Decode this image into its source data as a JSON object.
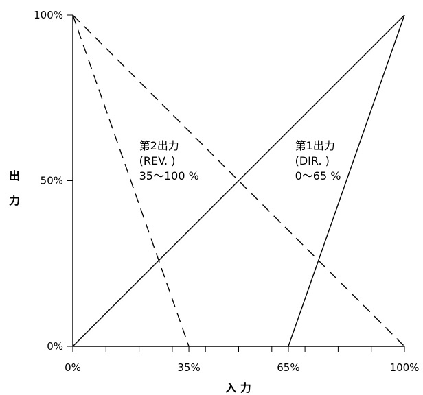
{
  "chart_data": {
    "type": "line",
    "xlabel": "入 力",
    "ylabel": "出力",
    "xlim": [
      0,
      100
    ],
    "ylim": [
      0,
      100
    ],
    "x_tick_labels": [
      {
        "value": 0,
        "label": "0%"
      },
      {
        "value": 35,
        "label": "35%"
      },
      {
        "value": 65,
        "label": "65%"
      },
      {
        "value": 100,
        "label": "100%"
      }
    ],
    "x_minor_ticks": [
      10,
      20,
      30,
      40,
      50,
      60,
      70,
      80,
      90
    ],
    "y_tick_labels": [
      {
        "value": 0,
        "label": "0%"
      },
      {
        "value": 50,
        "label": "50%"
      },
      {
        "value": 100,
        "label": "100%"
      }
    ],
    "grid": false,
    "series": [
      {
        "style": "solid",
        "points": [
          [
            0,
            0
          ],
          [
            100,
            100
          ]
        ]
      },
      {
        "style": "dashed",
        "points": [
          [
            0,
            100
          ],
          [
            100,
            0
          ]
        ]
      },
      {
        "style": "solid",
        "points": [
          [
            65,
            0
          ],
          [
            100,
            100
          ]
        ]
      },
      {
        "style": "dashed",
        "points": [
          [
            0,
            100
          ],
          [
            35,
            0
          ]
        ]
      }
    ],
    "annotations": [
      {
        "lines": [
          "第1出力",
          "(DIR. )",
          "0～65 %"
        ],
        "x": 67,
        "y": 62
      },
      {
        "lines": [
          "第2出力",
          "(REV. )",
          "35～100 %"
        ],
        "x": 20,
        "y": 62
      }
    ]
  }
}
